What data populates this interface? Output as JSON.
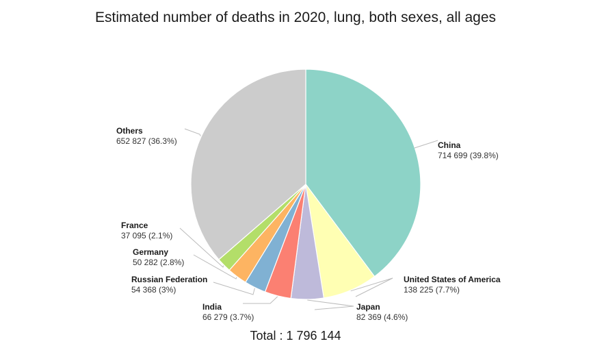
{
  "chart_data": {
    "type": "pie",
    "title": "Estimated number of deaths in 2020, lung, both sexes, all ages",
    "total_label": "Total : 1 796 144",
    "slices": [
      {
        "name": "China",
        "value": 714699,
        "label_value": "714 699 (39.8%)",
        "color": "#8dd3c7"
      },
      {
        "name": "United States of America",
        "value": 138225,
        "label_value": "138 225 (7.7%)",
        "color": "#ffffb3"
      },
      {
        "name": "Japan",
        "value": 82369,
        "label_value": "82 369 (4.6%)",
        "color": "#bebada"
      },
      {
        "name": "India",
        "value": 66279,
        "label_value": "66 279 (3.7%)",
        "color": "#fb8072"
      },
      {
        "name": "Russian Federation",
        "value": 54368,
        "label_value": "54 368 (3%)",
        "color": "#80b1d3"
      },
      {
        "name": "Germany",
        "value": 50282,
        "label_value": "50 282 (2.8%)",
        "color": "#fdb462"
      },
      {
        "name": "France",
        "value": 37095,
        "label_value": "37 095 (2.1%)",
        "color": "#b3de69"
      },
      {
        "name": "Others",
        "value": 652827,
        "label_value": "652 827 (36.3%)",
        "color": "#cccccc"
      }
    ]
  }
}
